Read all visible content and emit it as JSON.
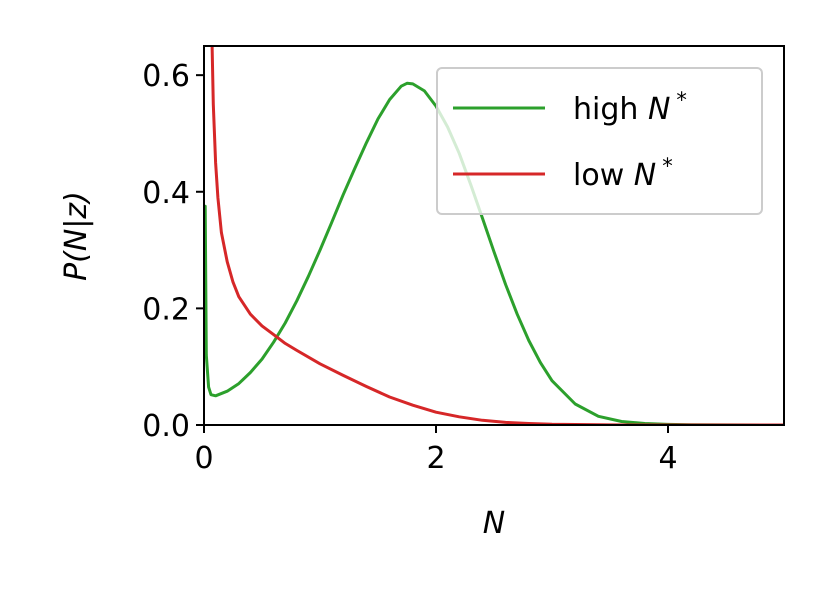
{
  "chart_data": {
    "type": "line",
    "xlabel": "N",
    "ylabel": "P(N|z)",
    "xlim": [
      0,
      5
    ],
    "ylim": [
      0,
      0.65
    ],
    "xticks": [
      "0",
      "2",
      "4"
    ],
    "xtick_values": [
      0,
      2,
      4
    ],
    "yticks": [
      "0.0",
      "0.2",
      "0.4",
      "0.6"
    ],
    "ytick_values": [
      0.0,
      0.2,
      0.4,
      0.6
    ],
    "legend_position": "top-right",
    "grid": false,
    "series": [
      {
        "name": "high N*",
        "label_main": "high ",
        "label_var": "N",
        "label_sup": "*",
        "color": "#2ca02c",
        "x": [
          0.01,
          0.02,
          0.04,
          0.06,
          0.1,
          0.2,
          0.3,
          0.4,
          0.5,
          0.6,
          0.7,
          0.8,
          0.9,
          1.0,
          1.1,
          1.2,
          1.3,
          1.4,
          1.5,
          1.6,
          1.7,
          1.75,
          1.8,
          1.9,
          2.0,
          2.1,
          2.2,
          2.3,
          2.4,
          2.5,
          2.6,
          2.7,
          2.8,
          2.9,
          3.0,
          3.2,
          3.4,
          3.6,
          3.8,
          4.0,
          4.2,
          4.5,
          5.0
        ],
        "y": [
          0.375,
          0.12,
          0.065,
          0.052,
          0.05,
          0.058,
          0.071,
          0.09,
          0.113,
          0.142,
          0.175,
          0.213,
          0.255,
          0.3,
          0.347,
          0.395,
          0.44,
          0.484,
          0.525,
          0.558,
          0.581,
          0.586,
          0.585,
          0.573,
          0.547,
          0.511,
          0.466,
          0.412,
          0.355,
          0.297,
          0.241,
          0.19,
          0.145,
          0.107,
          0.076,
          0.036,
          0.015,
          0.006,
          0.0025,
          0.001,
          0.0004,
          0.0001,
          0.0
        ]
      },
      {
        "name": "low N*",
        "label_main": "low ",
        "label_var": "N",
        "label_sup": "*",
        "color": "#d62728",
        "x": [
          0.07,
          0.08,
          0.1,
          0.12,
          0.15,
          0.2,
          0.25,
          0.3,
          0.4,
          0.5,
          0.6,
          0.7,
          0.8,
          1.0,
          1.2,
          1.4,
          1.6,
          1.8,
          2.0,
          2.2,
          2.4,
          2.6,
          2.8,
          3.0,
          3.5,
          4.0,
          4.5,
          5.0
        ],
        "y": [
          0.65,
          0.55,
          0.45,
          0.39,
          0.33,
          0.28,
          0.245,
          0.22,
          0.19,
          0.17,
          0.155,
          0.14,
          0.128,
          0.105,
          0.085,
          0.066,
          0.048,
          0.034,
          0.022,
          0.014,
          0.008,
          0.0045,
          0.0025,
          0.0012,
          0.0002,
          0.0,
          0.0,
          0.0
        ]
      }
    ]
  }
}
